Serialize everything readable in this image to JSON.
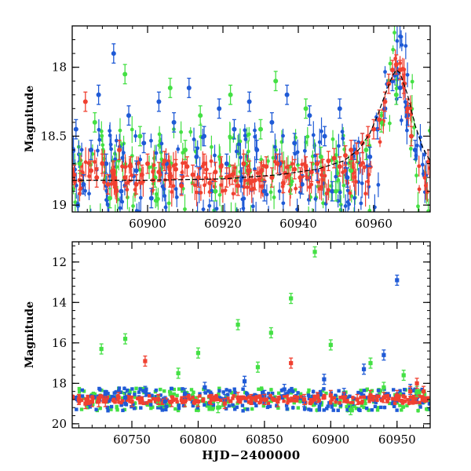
{
  "chart_data": [
    {
      "type": "scatter",
      "panel": "top",
      "title": "",
      "xlabel": "",
      "ylabel": "Magnitude",
      "xlim": [
        60880,
        60975
      ],
      "ylim": [
        19.05,
        17.7
      ],
      "y_inverted": true,
      "xticks": [
        60900,
        60920,
        60940,
        60960
      ],
      "xtick_labels": [
        "60900",
        "60920",
        "60940",
        "60960"
      ],
      "yticks": [
        18,
        18.5,
        19
      ],
      "ytick_labels": [
        "18",
        "18.5",
        "19"
      ],
      "colors": {
        "blue": "#1f5ad6",
        "green": "#44e044",
        "red": "#f04030",
        "model": "#000000"
      },
      "series": [
        {
          "name": "blue",
          "x": [
            60881,
            60883,
            60885,
            60887,
            60889,
            60891,
            60893,
            60895,
            60897,
            60899,
            60901,
            60903,
            60905,
            60907,
            60909,
            60911,
            60913,
            60915,
            60917,
            60919,
            60921,
            60923,
            60925,
            60927,
            60929,
            60931,
            60933,
            60935,
            60937,
            60939,
            60941,
            60943,
            60945,
            60947,
            60949,
            60951,
            60953,
            60955,
            60957,
            60959,
            60961,
            60963,
            60965,
            60967,
            60969,
            60971
          ],
          "y": [
            18.45,
            18.85,
            18.6,
            18.2,
            18.7,
            17.9,
            18.9,
            18.35,
            18.75,
            18.55,
            18.95,
            18.25,
            18.7,
            18.4,
            18.85,
            18.15,
            18.65,
            18.5,
            18.9,
            18.3,
            18.7,
            18.45,
            18.8,
            18.25,
            18.6,
            18.9,
            18.4,
            18.7,
            18.2,
            18.55,
            18.85,
            18.35,
            18.75,
            18.5,
            18.9,
            18.3,
            18.8,
            18.6,
            18.55,
            18.65,
            18.45,
            18.3,
            18.1,
            18.15,
            18.35,
            18.6
          ]
        },
        {
          "name": "green",
          "x": [
            60882,
            60886,
            60890,
            60894,
            60898,
            60902,
            60906,
            60910,
            60914,
            60918,
            60922,
            60926,
            60930,
            60934,
            60938,
            60942,
            60946,
            60950,
            60954,
            60958,
            60962,
            60966
          ],
          "y": [
            18.7,
            18.4,
            18.95,
            18.05,
            18.5,
            18.8,
            18.15,
            18.6,
            18.35,
            18.9,
            18.2,
            18.7,
            18.45,
            18.1,
            18.85,
            18.3,
            18.65,
            18.9,
            18.75,
            18.6,
            18.4,
            18.2
          ]
        },
        {
          "name": "red",
          "x": [
            60880.5,
            60882,
            60883.5,
            60885,
            60886.5,
            60888,
            60889.5,
            60891,
            60892.5,
            60894,
            60895.5,
            60897,
            60898.5,
            60900,
            60901.5,
            60903,
            60904.5,
            60906,
            60907.5,
            60909,
            60910.5,
            60912,
            60913.5,
            60915,
            60916.5,
            60918,
            60919.5,
            60921,
            60922.5,
            60924,
            60925.5,
            60927,
            60928.5,
            60930,
            60931.5,
            60933,
            60934.5,
            60936,
            60937.5,
            60939,
            60940.5,
            60942,
            60943.5,
            60945,
            60946.5,
            60948,
            60949.5,
            60951,
            60952.5,
            60954,
            60955.5,
            60957,
            60958.5,
            60960,
            60961.5,
            60963,
            60964,
            60965,
            60966,
            60967,
            60968,
            60969,
            60970
          ],
          "y": [
            18.78,
            18.82,
            18.25,
            18.75,
            18.8,
            18.7,
            18.85,
            18.75,
            18.6,
            18.8,
            18.72,
            18.85,
            18.78,
            18.7,
            18.82,
            18.76,
            18.68,
            18.8,
            18.74,
            18.86,
            18.72,
            18.78,
            18.8,
            18.7,
            18.84,
            18.76,
            18.72,
            18.8,
            18.78,
            18.86,
            18.7,
            18.75,
            18.82,
            18.76,
            18.72,
            18.8,
            18.7,
            18.84,
            18.78,
            18.74,
            18.8,
            18.72,
            18.76,
            18.7,
            18.74,
            18.68,
            18.66,
            18.72,
            18.64,
            18.6,
            18.62,
            18.55,
            18.5,
            18.45,
            18.38,
            18.25,
            18.12,
            18.02,
            17.98,
            18.02,
            18.12,
            18.3,
            18.5
          ]
        }
      ],
      "model_curve": {
        "x": [
          60880,
          60900,
          60920,
          60935,
          60945,
          60952,
          60956,
          60959,
          60961,
          60963,
          60965,
          60966,
          60967,
          60969,
          60971,
          60973,
          60975
        ],
        "y": [
          18.82,
          18.82,
          18.81,
          18.78,
          18.74,
          18.68,
          18.6,
          18.48,
          18.35,
          18.2,
          18.06,
          18.02,
          18.04,
          18.2,
          18.42,
          18.58,
          18.68
        ]
      }
    },
    {
      "type": "scatter",
      "panel": "bottom",
      "title": "",
      "xlabel": "HJD−2400000",
      "ylabel": "Magnitude",
      "xlim": [
        60705,
        60975
      ],
      "ylim": [
        20.2,
        11.0
      ],
      "y_inverted": true,
      "xticks": [
        60750,
        60800,
        60850,
        60900,
        60950
      ],
      "xtick_labels": [
        "60750",
        "60800",
        "60850",
        "60900",
        "60950"
      ],
      "yticks": [
        12,
        14,
        16,
        18,
        20
      ],
      "ytick_labels": [
        "12",
        "14",
        "16",
        "18",
        "20"
      ],
      "colors": {
        "blue": "#1f5ad6",
        "green": "#44e044",
        "red": "#f04030"
      },
      "series": [
        {
          "name": "blue",
          "x": [
            60730,
            60745,
            60760,
            60775,
            60790,
            60805,
            60820,
            60835,
            60850,
            60865,
            60880,
            60895,
            60910,
            60925,
            60940,
            60950,
            60960
          ],
          "y": [
            18.6,
            18.7,
            18.4,
            18.9,
            18.5,
            18.2,
            18.8,
            17.9,
            18.6,
            18.3,
            18.9,
            17.8,
            18.5,
            17.3,
            16.6,
            12.9,
            18.3
          ]
        },
        {
          "name": "green",
          "x": [
            60727,
            60745,
            60770,
            60785,
            60800,
            60815,
            60830,
            60845,
            60855,
            60870,
            60888,
            60900,
            60915,
            60930,
            60940,
            60955,
            60965
          ],
          "y": [
            16.3,
            15.8,
            18.9,
            17.5,
            16.5,
            19.2,
            15.1,
            17.2,
            15.5,
            13.8,
            11.5,
            16.1,
            19.3,
            17.0,
            18.2,
            17.6,
            18.4
          ]
        },
        {
          "name": "red",
          "x": [
            60710,
            60715,
            60720,
            60725,
            60730,
            60740,
            60750,
            60760,
            60770,
            60780,
            60790,
            60800,
            60810,
            60820,
            60830,
            60840,
            60850,
            60860,
            60870,
            60880,
            60890,
            60900,
            60910,
            60920,
            60930,
            60940,
            60950,
            60960,
            60965,
            60970
          ],
          "y": [
            18.8,
            19.0,
            18.9,
            18.9,
            18.9,
            18.7,
            18.9,
            16.9,
            18.8,
            18.9,
            18.9,
            18.9,
            18.8,
            19.0,
            18.7,
            18.8,
            18.8,
            18.9,
            17.0,
            18.8,
            18.7,
            18.6,
            18.7,
            18.8,
            18.6,
            18.7,
            18.6,
            18.4,
            18.0,
            18.4
          ]
        }
      ]
    }
  ]
}
